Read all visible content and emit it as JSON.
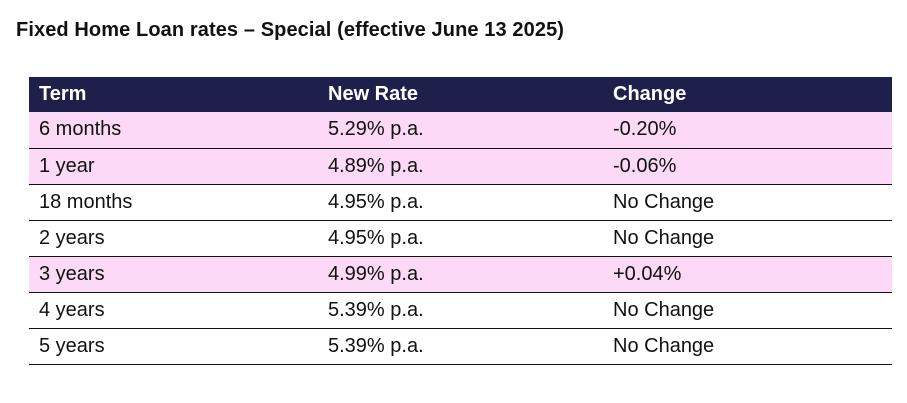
{
  "title": "Fixed Home Loan rates – Special (effective June 13 2025)",
  "colors": {
    "header_background": "#1e1f4b",
    "header_text": "#ffffff",
    "highlight_row": "#fcd9f6",
    "row_divider": "#111111"
  },
  "table": {
    "headers": [
      "Term",
      "New Rate",
      "Change"
    ],
    "rows": [
      {
        "term": "6 months",
        "rate": "5.29% p.a.",
        "change": "-0.20%",
        "highlighted": true
      },
      {
        "term": "1 year",
        "rate": "4.89% p.a.",
        "change": "-0.06%",
        "highlighted": true
      },
      {
        "term": "18 months",
        "rate": "4.95% p.a.",
        "change": "No Change",
        "highlighted": false
      },
      {
        "term": "2 years",
        "rate": "4.95% p.a.",
        "change": "No Change",
        "highlighted": false
      },
      {
        "term": "3 years",
        "rate": "4.99% p.a.",
        "change": "+0.04%",
        "highlighted": true
      },
      {
        "term": "4 years",
        "rate": "5.39% p.a.",
        "change": "No Change",
        "highlighted": false
      },
      {
        "term": "5 years",
        "rate": "5.39% p.a.",
        "change": "No Change",
        "highlighted": false
      }
    ]
  }
}
